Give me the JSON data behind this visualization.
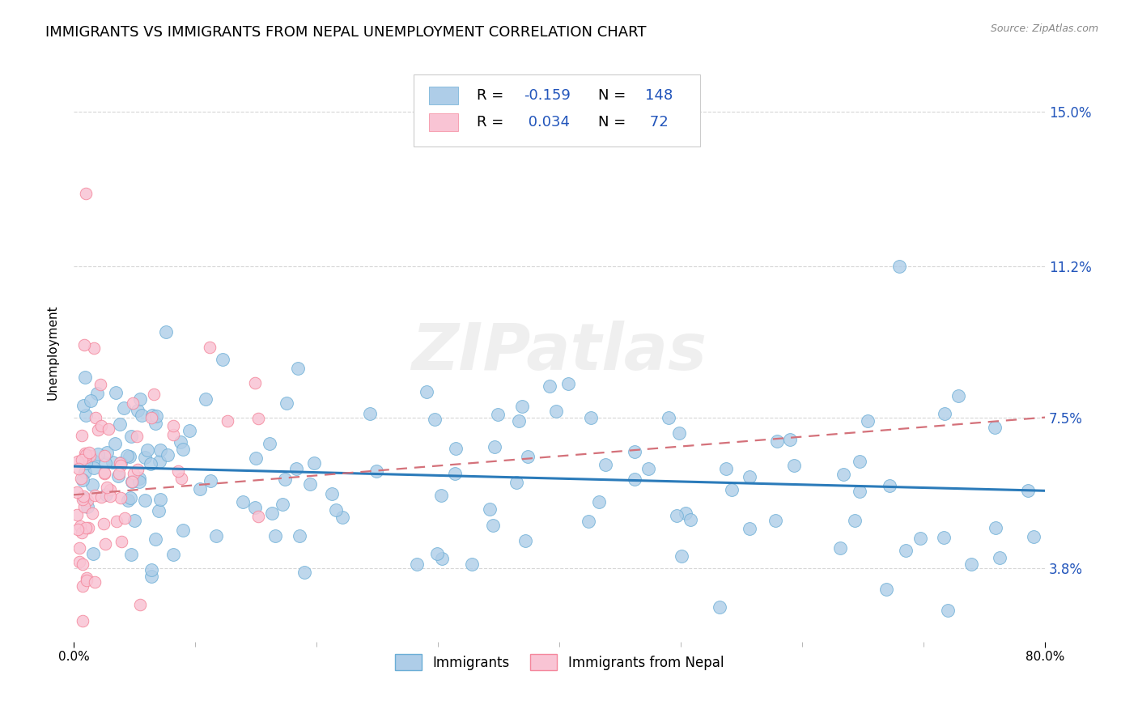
{
  "title": "IMMIGRANTS VS IMMIGRANTS FROM NEPAL UNEMPLOYMENT CORRELATION CHART",
  "source": "Source: ZipAtlas.com",
  "ylabel": "Unemployment",
  "y_tick_labels": [
    "3.8%",
    "7.5%",
    "11.2%",
    "15.0%"
  ],
  "y_tick_values": [
    0.038,
    0.075,
    0.112,
    0.15
  ],
  "x_min": 0.0,
  "x_max": 0.8,
  "y_min": 0.02,
  "y_max": 0.162,
  "series1_label": "Immigrants",
  "series2_label": "Immigrants from Nepal",
  "series1_R": "-0.159",
  "series1_N": "148",
  "series2_R": "0.034",
  "series2_N": "72",
  "series1_fill": "#aecde8",
  "series1_edge": "#6baed6",
  "series2_fill": "#f9c4d4",
  "series2_edge": "#f4879c",
  "trend1_color": "#2b7bba",
  "trend2_color": "#d4717a",
  "background_color": "#ffffff",
  "grid_color": "#cccccc",
  "title_fontsize": 13,
  "axis_label_fontsize": 11,
  "tick_fontsize": 11,
  "legend_fontsize": 13,
  "legend_color": "#2255bb",
  "watermark_text": "ZIPatlas",
  "watermark_alpha": 0.12
}
